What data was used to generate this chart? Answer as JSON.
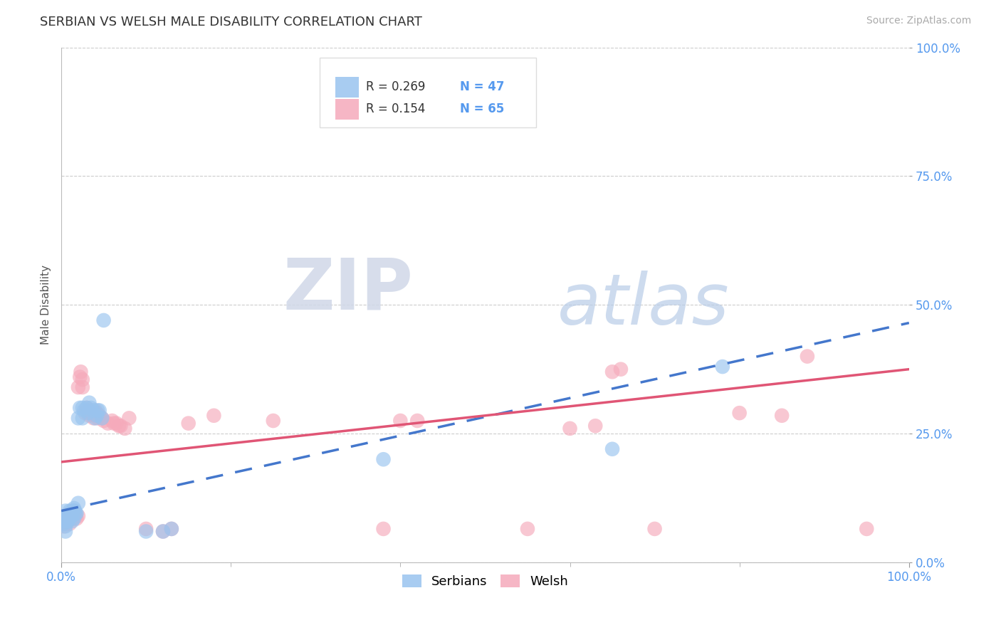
{
  "title": "SERBIAN VS WELSH MALE DISABILITY CORRELATION CHART",
  "source": "Source: ZipAtlas.com",
  "ylabel": "Male Disability",
  "xlim": [
    0.0,
    1.0
  ],
  "ylim": [
    0.0,
    1.0
  ],
  "xtick_positions": [
    0.0,
    1.0
  ],
  "xtick_labels": [
    "0.0%",
    "100.0%"
  ],
  "ytick_positions": [
    0.0,
    0.25,
    0.5,
    0.75,
    1.0
  ],
  "ytick_labels": [
    "0.0%",
    "25.0%",
    "50.0%",
    "75.0%",
    "100.0%"
  ],
  "grid_color": "#cccccc",
  "background_color": "#ffffff",
  "serbian_color": "#99c4ef",
  "welsh_color": "#f5aabb",
  "serbian_line_color": "#4477cc",
  "welsh_line_color": "#e05575",
  "serbians_label": "Serbians",
  "welsh_label": "Welsh",
  "tick_color": "#5599ee",
  "serbian_line_x": [
    0.0,
    1.0
  ],
  "serbian_line_y": [
    0.1,
    0.465
  ],
  "welsh_line_x": [
    0.0,
    1.0
  ],
  "welsh_line_y": [
    0.195,
    0.375
  ],
  "serbian_scatter": [
    [
      0.003,
      0.075
    ],
    [
      0.003,
      0.085
    ],
    [
      0.004,
      0.08
    ],
    [
      0.005,
      0.09
    ],
    [
      0.005,
      0.1
    ],
    [
      0.005,
      0.07
    ],
    [
      0.005,
      0.06
    ],
    [
      0.006,
      0.08
    ],
    [
      0.006,
      0.09
    ],
    [
      0.007,
      0.08
    ],
    [
      0.007,
      0.09
    ],
    [
      0.008,
      0.08
    ],
    [
      0.009,
      0.09
    ],
    [
      0.01,
      0.1
    ],
    [
      0.01,
      0.085
    ],
    [
      0.011,
      0.09
    ],
    [
      0.012,
      0.09
    ],
    [
      0.013,
      0.08
    ],
    [
      0.013,
      0.1
    ],
    [
      0.015,
      0.085
    ],
    [
      0.016,
      0.1
    ],
    [
      0.017,
      0.095
    ],
    [
      0.018,
      0.095
    ],
    [
      0.02,
      0.28
    ],
    [
      0.022,
      0.3
    ],
    [
      0.025,
      0.28
    ],
    [
      0.027,
      0.295
    ],
    [
      0.03,
      0.3
    ],
    [
      0.032,
      0.29
    ],
    [
      0.033,
      0.31
    ],
    [
      0.035,
      0.3
    ],
    [
      0.038,
      0.295
    ],
    [
      0.04,
      0.28
    ],
    [
      0.042,
      0.285
    ],
    [
      0.043,
      0.295
    ],
    [
      0.045,
      0.295
    ],
    [
      0.048,
      0.28
    ],
    [
      0.05,
      0.47
    ],
    [
      0.025,
      0.3
    ],
    [
      0.02,
      0.115
    ],
    [
      0.015,
      0.105
    ],
    [
      0.1,
      0.06
    ],
    [
      0.12,
      0.06
    ],
    [
      0.13,
      0.065
    ],
    [
      0.38,
      0.2
    ],
    [
      0.65,
      0.22
    ],
    [
      0.78,
      0.38
    ]
  ],
  "welsh_scatter": [
    [
      0.003,
      0.07
    ],
    [
      0.004,
      0.08
    ],
    [
      0.005,
      0.075
    ],
    [
      0.005,
      0.09
    ],
    [
      0.006,
      0.08
    ],
    [
      0.007,
      0.085
    ],
    [
      0.007,
      0.09
    ],
    [
      0.008,
      0.08
    ],
    [
      0.009,
      0.085
    ],
    [
      0.01,
      0.075
    ],
    [
      0.01,
      0.095
    ],
    [
      0.011,
      0.09
    ],
    [
      0.012,
      0.085
    ],
    [
      0.013,
      0.09
    ],
    [
      0.015,
      0.09
    ],
    [
      0.015,
      0.1
    ],
    [
      0.016,
      0.095
    ],
    [
      0.017,
      0.09
    ],
    [
      0.018,
      0.085
    ],
    [
      0.02,
      0.09
    ],
    [
      0.02,
      0.34
    ],
    [
      0.022,
      0.36
    ],
    [
      0.023,
      0.37
    ],
    [
      0.025,
      0.355
    ],
    [
      0.025,
      0.34
    ],
    [
      0.028,
      0.29
    ],
    [
      0.03,
      0.3
    ],
    [
      0.032,
      0.295
    ],
    [
      0.033,
      0.285
    ],
    [
      0.035,
      0.29
    ],
    [
      0.038,
      0.28
    ],
    [
      0.04,
      0.285
    ],
    [
      0.04,
      0.295
    ],
    [
      0.042,
      0.29
    ],
    [
      0.043,
      0.28
    ],
    [
      0.045,
      0.285
    ],
    [
      0.048,
      0.28
    ],
    [
      0.05,
      0.275
    ],
    [
      0.055,
      0.27
    ],
    [
      0.06,
      0.275
    ],
    [
      0.062,
      0.27
    ],
    [
      0.065,
      0.27
    ],
    [
      0.068,
      0.265
    ],
    [
      0.07,
      0.265
    ],
    [
      0.075,
      0.26
    ],
    [
      0.08,
      0.28
    ],
    [
      0.1,
      0.065
    ],
    [
      0.12,
      0.06
    ],
    [
      0.13,
      0.065
    ],
    [
      0.15,
      0.27
    ],
    [
      0.18,
      0.285
    ],
    [
      0.25,
      0.275
    ],
    [
      0.38,
      0.065
    ],
    [
      0.4,
      0.275
    ],
    [
      0.42,
      0.275
    ],
    [
      0.55,
      0.065
    ],
    [
      0.6,
      0.26
    ],
    [
      0.63,
      0.265
    ],
    [
      0.65,
      0.37
    ],
    [
      0.66,
      0.375
    ],
    [
      0.7,
      0.065
    ],
    [
      0.8,
      0.29
    ],
    [
      0.85,
      0.285
    ],
    [
      0.88,
      0.4
    ],
    [
      0.95,
      0.065
    ]
  ]
}
